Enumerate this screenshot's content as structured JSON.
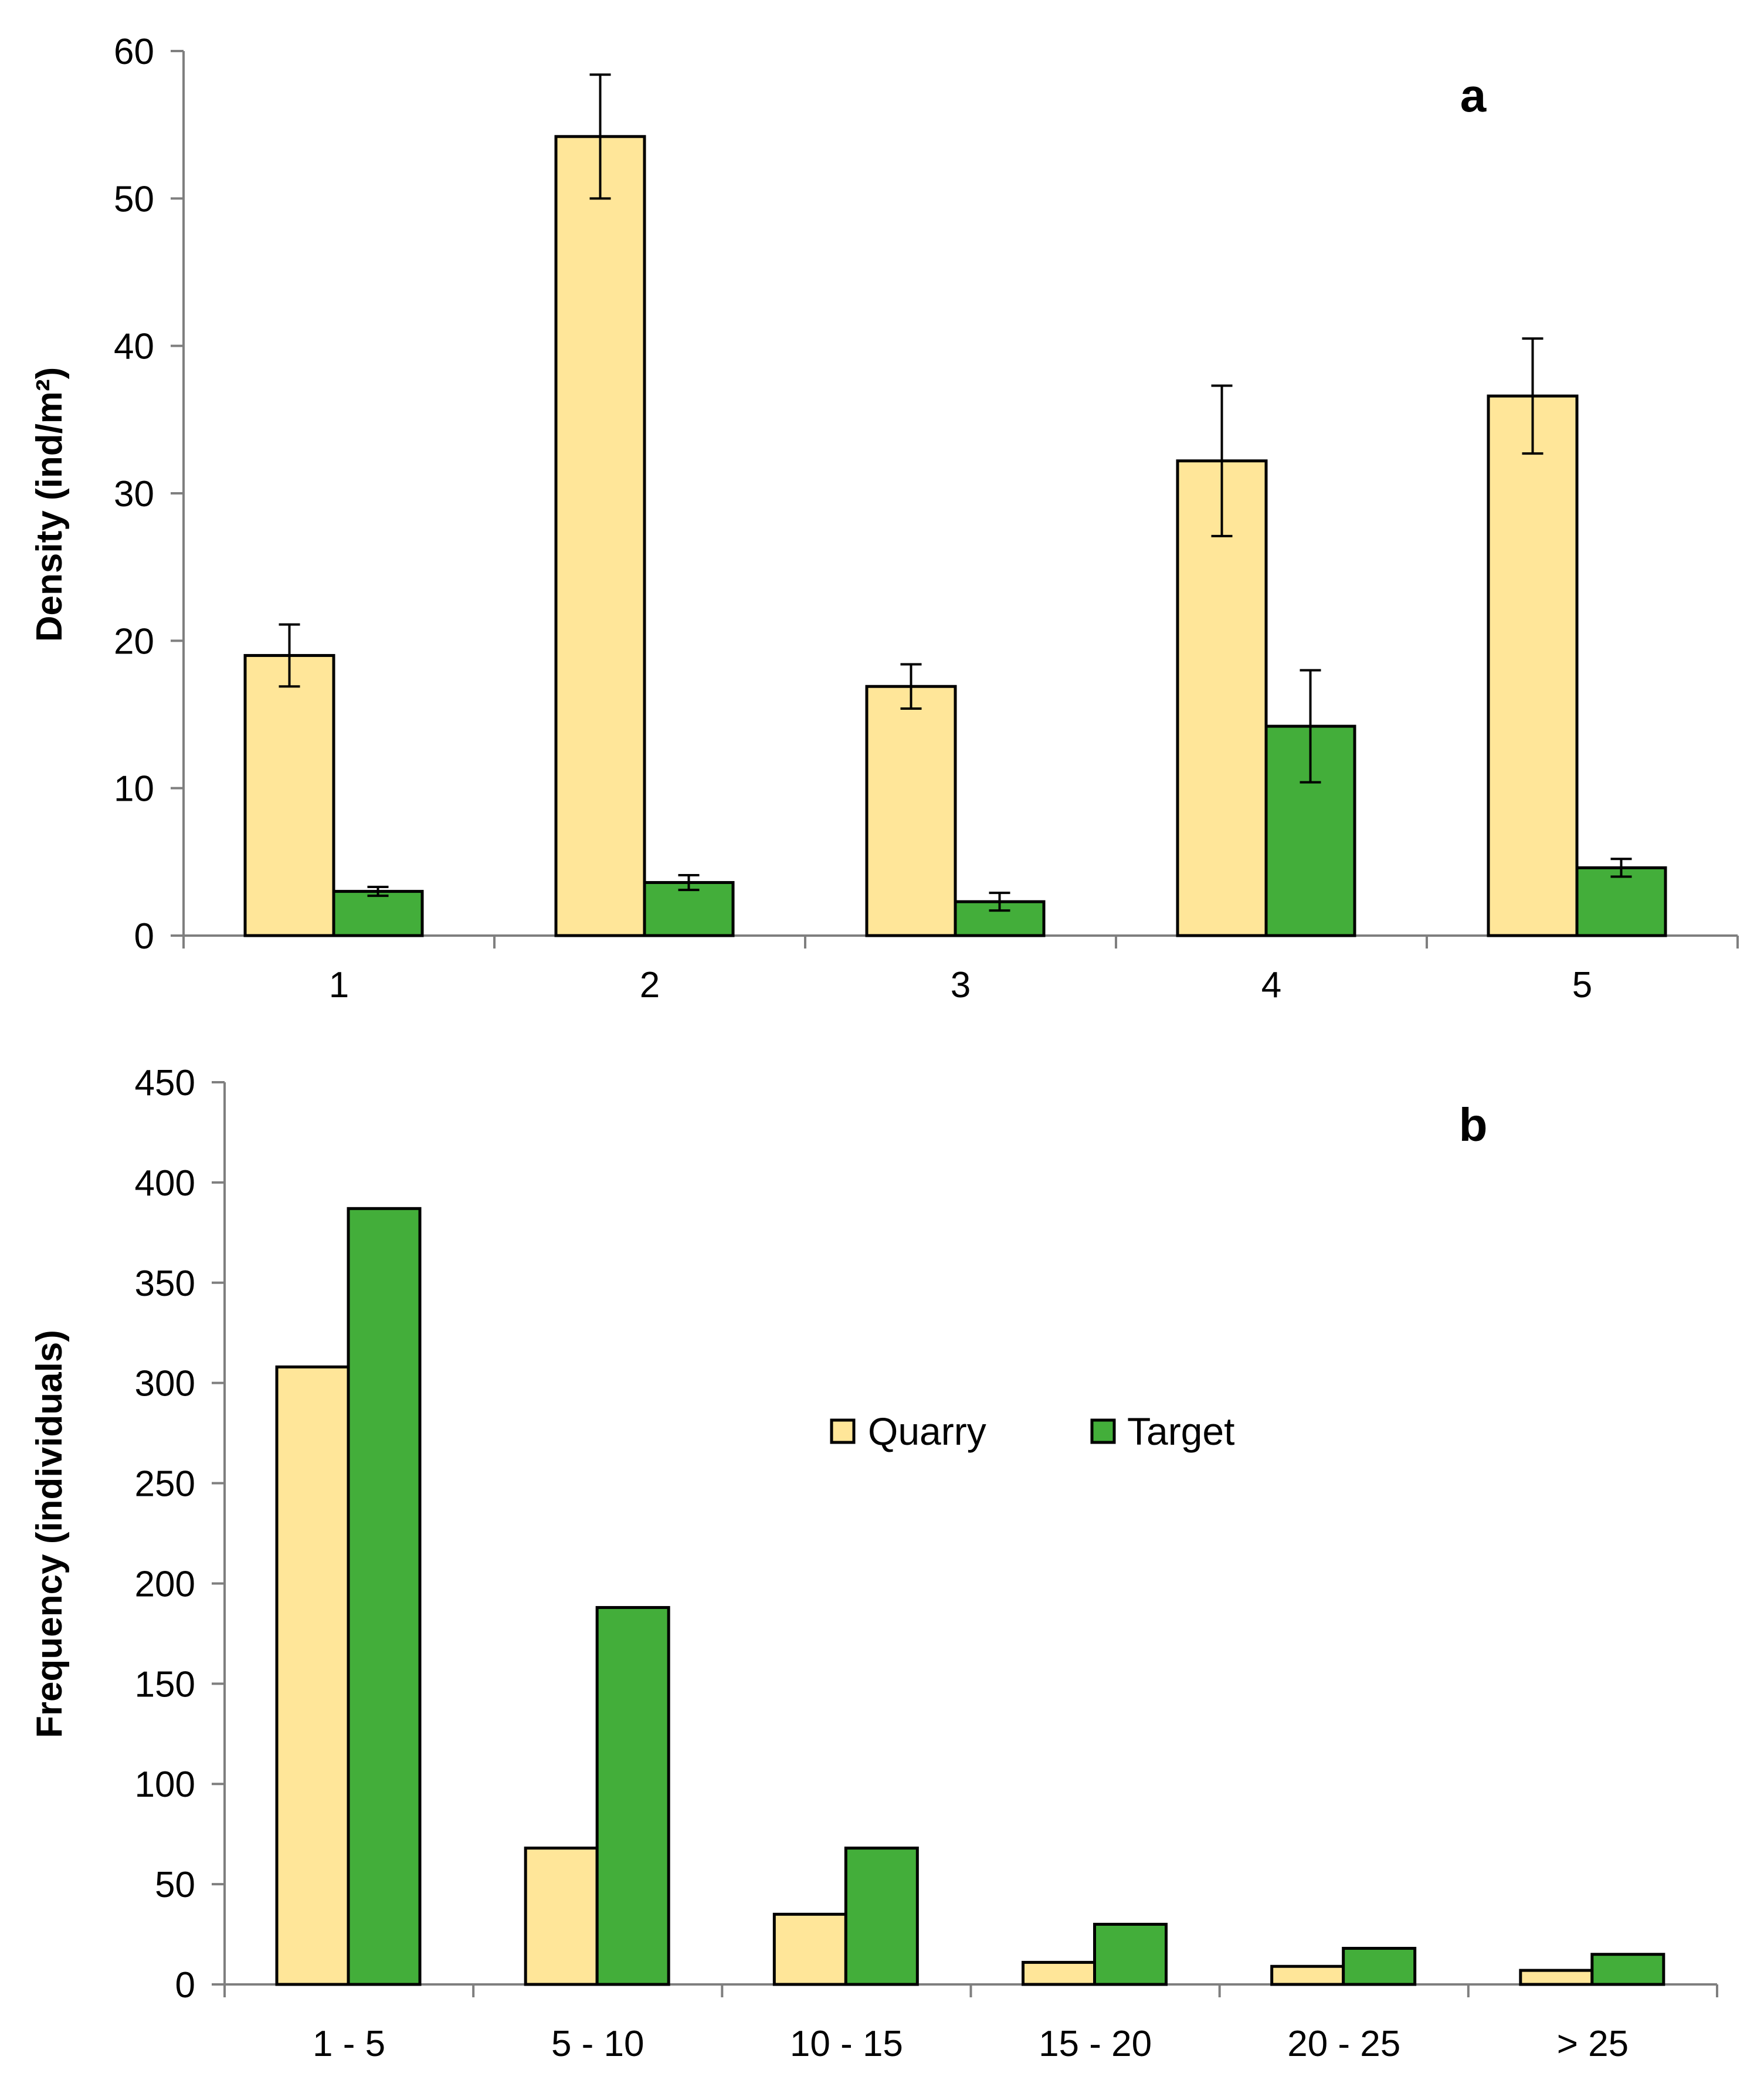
{
  "chart_data": [
    {
      "panel": "a",
      "type": "bar",
      "panel_label": "a",
      "ylabel": "Density (ind/m²)",
      "xlabel": "",
      "ylim": [
        0,
        60
      ],
      "yticks": [
        0,
        10,
        20,
        30,
        40,
        50,
        60
      ],
      "categories": [
        "1",
        "2",
        "3",
        "4",
        "5"
      ],
      "series": [
        {
          "name": "Quarry",
          "color": "#FFE699",
          "values": [
            19,
            54.2,
            16.9,
            32.2,
            36.6
          ],
          "errors": [
            2.1,
            4.2,
            1.5,
            5.1,
            3.9
          ]
        },
        {
          "name": "Target",
          "color": "#43AE3A",
          "values": [
            3.0,
            3.6,
            2.3,
            14.2,
            4.6
          ],
          "errors": [
            0.3,
            0.5,
            0.6,
            3.8,
            0.6
          ]
        }
      ],
      "grid": false
    },
    {
      "panel": "b",
      "type": "bar",
      "panel_label": "b",
      "ylabel": "Frequency (individuals)",
      "xlabel": "",
      "ylim": [
        0,
        450
      ],
      "yticks": [
        0,
        50,
        100,
        150,
        200,
        250,
        300,
        350,
        400,
        450
      ],
      "categories": [
        "1 - 5",
        "5 - 10",
        "10 - 15",
        "15 - 20",
        "20 - 25",
        "> 25"
      ],
      "series": [
        {
          "name": "Quarry",
          "color": "#FFE699",
          "values": [
            308,
            68,
            35,
            11,
            9,
            7
          ]
        },
        {
          "name": "Target",
          "color": "#43AE3A",
          "values": [
            387,
            188,
            68,
            30,
            18,
            15
          ]
        }
      ],
      "legend": {
        "position": "center-right",
        "entries": [
          "Quarry",
          "Target"
        ]
      },
      "grid": false
    }
  ]
}
